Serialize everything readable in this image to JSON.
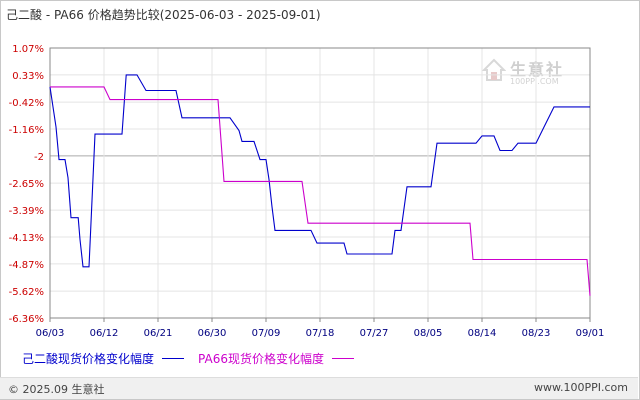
{
  "title": "己二酸 - PA66 价格趋势比较(2025-06-03 - 2025-09-01)",
  "watermark": {
    "brand": "生意社",
    "site": "100PPI.COM"
  },
  "legend": [
    {
      "label": "己二酸现货价格变化幅度",
      "color": "#0000cc"
    },
    {
      "label": "PA66现货价格变化幅度",
      "color": "#cc00cc"
    }
  ],
  "footer": {
    "left": "© 2025.09 生意社",
    "right": "www.100PPI.com"
  },
  "colors": {
    "axis": "#888888",
    "grid": "#e4e4e4",
    "zero_line": "#aaaaaa",
    "y_tick": "#cc0000",
    "x_tick": "#000080"
  },
  "chart_data": {
    "type": "line",
    "x_ticks": [
      "06/03",
      "06/12",
      "06/21",
      "06/30",
      "07/09",
      "07/18",
      "07/27",
      "08/05",
      "08/14",
      "08/23",
      "09/01"
    ],
    "y_ticks": [
      "1.07%",
      "0.33%",
      "-0.42%",
      "-1.16%",
      "-2",
      "-2.65%",
      "-3.39%",
      "-4.13%",
      "-4.87%",
      "-5.62%",
      "-6.36%"
    ],
    "y_tick_values": [
      1.07,
      0.33,
      -0.42,
      -1.16,
      -1.9,
      -2.65,
      -3.39,
      -4.13,
      -4.87,
      -5.62,
      -6.36
    ],
    "ylim": [
      -6.36,
      1.07
    ],
    "xlim": [
      0,
      90
    ],
    "grid": true,
    "legend_position": "bottom",
    "series": [
      {
        "name": "己二酸现货价格变化幅度",
        "color": "#0000cc",
        "points": [
          [
            0,
            0
          ],
          [
            1,
            -1.1
          ],
          [
            1.5,
            -2.0
          ],
          [
            2.5,
            -2.0
          ],
          [
            3,
            -2.5
          ],
          [
            3.5,
            -3.6
          ],
          [
            4.7,
            -3.6
          ],
          [
            5,
            -4.2
          ],
          [
            5.5,
            -4.95
          ],
          [
            6.5,
            -4.95
          ],
          [
            7.5,
            -1.3
          ],
          [
            8,
            -1.3
          ],
          [
            12,
            -1.3
          ],
          [
            12.7,
            0.33
          ],
          [
            14.5,
            0.33
          ],
          [
            16,
            -0.1
          ],
          [
            21,
            -0.1
          ],
          [
            22,
            -0.85
          ],
          [
            30,
            -0.85
          ],
          [
            31.5,
            -1.2
          ],
          [
            32,
            -1.5
          ],
          [
            34,
            -1.5
          ],
          [
            35,
            -2.0
          ],
          [
            36,
            -2.0
          ],
          [
            36.5,
            -2.55
          ],
          [
            37,
            -3.3
          ],
          [
            37.5,
            -3.95
          ],
          [
            43.5,
            -3.95
          ],
          [
            44.5,
            -4.3
          ],
          [
            49,
            -4.3
          ],
          [
            49.5,
            -4.6
          ],
          [
            57,
            -4.6
          ],
          [
            57.5,
            -3.95
          ],
          [
            58.5,
            -3.95
          ],
          [
            59.5,
            -2.75
          ],
          [
            63.5,
            -2.75
          ],
          [
            64.5,
            -1.55
          ],
          [
            71,
            -1.55
          ],
          [
            72,
            -1.35
          ],
          [
            74,
            -1.35
          ],
          [
            75,
            -1.75
          ],
          [
            77,
            -1.75
          ],
          [
            78,
            -1.55
          ],
          [
            81,
            -1.55
          ],
          [
            82.5,
            -1.05
          ],
          [
            84,
            -0.55
          ],
          [
            90,
            -0.55
          ]
        ]
      },
      {
        "name": "PA66现货价格变化幅度",
        "color": "#cc00cc",
        "points": [
          [
            0,
            0
          ],
          [
            9,
            0
          ],
          [
            10,
            -0.35
          ],
          [
            28,
            -0.35
          ],
          [
            29,
            -2.6
          ],
          [
            42,
            -2.6
          ],
          [
            43,
            -3.75
          ],
          [
            70,
            -3.75
          ],
          [
            70.5,
            -4.75
          ],
          [
            89.5,
            -4.75
          ],
          [
            90,
            -5.75
          ]
        ]
      }
    ]
  }
}
